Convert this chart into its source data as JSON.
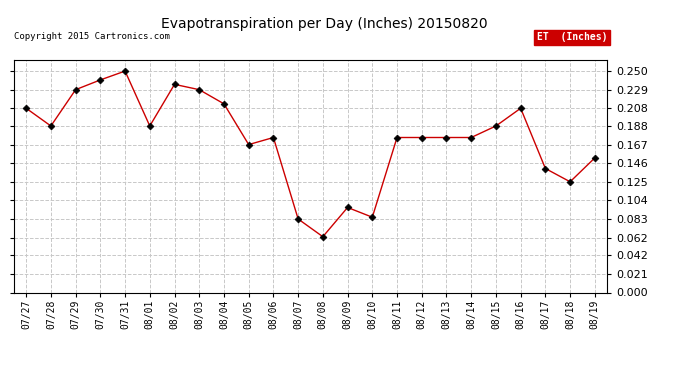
{
  "title": "Evapotranspiration per Day (Inches) 20150820",
  "copyright_text": "Copyright 2015 Cartronics.com",
  "legend_label": "ET  (Inches)",
  "x_labels": [
    "07/27",
    "07/28",
    "07/29",
    "07/30",
    "07/31",
    "08/01",
    "08/02",
    "08/03",
    "08/04",
    "08/05",
    "08/06",
    "08/07",
    "08/08",
    "08/09",
    "08/10",
    "08/11",
    "08/12",
    "08/13",
    "08/14",
    "08/15",
    "08/16",
    "08/17",
    "08/18",
    "08/19"
  ],
  "y_values": [
    0.208,
    0.188,
    0.229,
    0.24,
    0.25,
    0.188,
    0.235,
    0.229,
    0.213,
    0.167,
    0.175,
    0.083,
    0.063,
    0.096,
    0.085,
    0.175,
    0.175,
    0.175,
    0.175,
    0.188,
    0.208,
    0.14,
    0.125,
    0.152
  ],
  "line_color": "#cc0000",
  "marker_color": "#000000",
  "grid_color": "#c8c8c8",
  "background_color": "#ffffff",
  "ylim": [
    0.0,
    0.2625
  ],
  "yticks": [
    0.0,
    0.021,
    0.042,
    0.062,
    0.083,
    0.104,
    0.125,
    0.146,
    0.167,
    0.188,
    0.208,
    0.229,
    0.25
  ],
  "legend_bg": "#cc0000",
  "legend_fg": "#ffffff"
}
